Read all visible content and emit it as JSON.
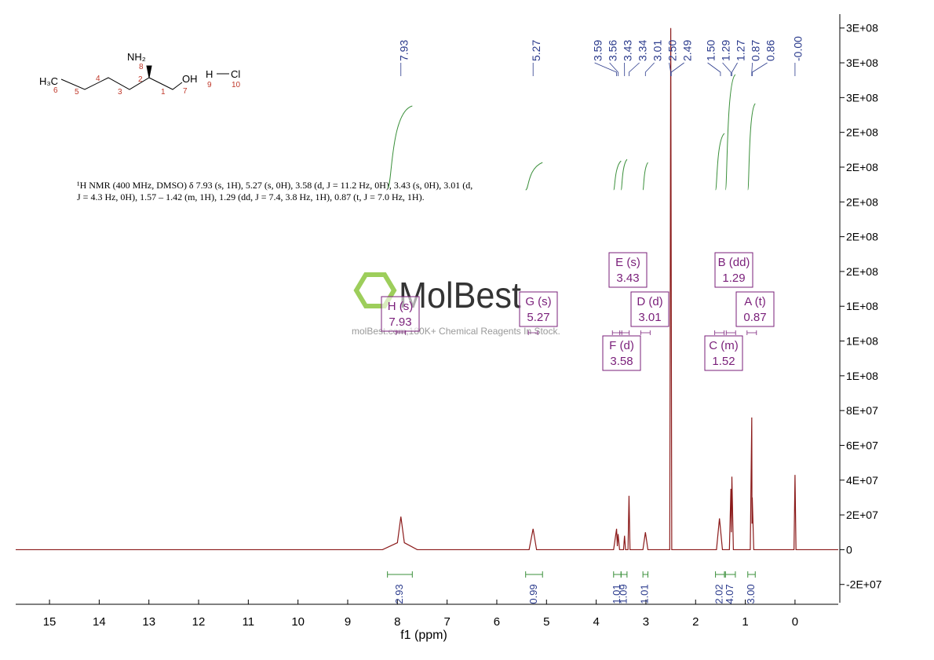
{
  "chart_data": {
    "type": "line",
    "x_label": "f1 (ppm)",
    "xlim": [
      15.68,
      -0.87
    ],
    "xticks": [
      15,
      14,
      13,
      12,
      11,
      10,
      9,
      8,
      7,
      6,
      5,
      4,
      3,
      2,
      1,
      0
    ],
    "ylim": [
      -30500000,
      308000000
    ],
    "yticks": [
      {
        "value": -20000000,
        "label": "-2E+07"
      },
      0,
      {
        "value": 20000000,
        "label": "2E+07"
      },
      {
        "value": 40000000,
        "label": "4E+07"
      },
      {
        "value": 60000000,
        "label": "6E+07"
      },
      {
        "value": 80000000,
        "label": "8E+07"
      },
      {
        "value": 100000000,
        "label": "1E+08"
      },
      {
        "value": 120000000,
        "label": "1E+08"
      },
      {
        "value": 140000000,
        "label": "1E+08"
      },
      {
        "value": 160000000,
        "label": "2E+08"
      },
      {
        "value": 180000000,
        "label": "2E+08"
      },
      {
        "value": 200000000,
        "label": "2E+08"
      },
      {
        "value": 220000000,
        "label": "2E+08"
      },
      {
        "value": 240000000,
        "label": "2E+08"
      },
      {
        "value": 260000000,
        "label": "3E+08"
      },
      {
        "value": 280000000,
        "label": "3E+08"
      },
      {
        "value": 300000000,
        "label": "3E+08"
      }
    ],
    "series": [
      {
        "color": "#8b1a1a",
        "x": [
          15.68,
          8.3,
          8.0,
          7.93,
          7.86,
          7.6,
          5.35,
          5.27,
          5.2,
          3.65,
          3.59,
          3.575,
          3.56,
          3.53,
          3.45,
          3.43,
          3.41,
          3.36,
          3.34,
          3.32,
          3.06,
          3.01,
          2.96,
          2.52,
          2.5,
          2.48,
          1.58,
          1.52,
          1.46,
          1.32,
          1.29,
          1.28,
          1.27,
          1.24,
          0.9,
          0.87,
          0.865,
          0.86,
          0.83,
          0.02,
          0.0,
          -0.02,
          -0.87
        ],
        "values": [
          0,
          0,
          4000000,
          19000000,
          4000000,
          0,
          0,
          12000000,
          0,
          0,
          12000000,
          2000000,
          9000000,
          0,
          0,
          8000000,
          0,
          0,
          31000000,
          0,
          0,
          10000000,
          0,
          0,
          300000000,
          0,
          0,
          18000000,
          0,
          0,
          35000000,
          10000000,
          42000000,
          0,
          0,
          76000000,
          15000000,
          30000000,
          0,
          0,
          43000000,
          0,
          0
        ]
      }
    ],
    "peak_labels": [
      {
        "x": 7.93,
        "label": "7.93"
      },
      {
        "x": 5.27,
        "label": "5.27"
      },
      {
        "x": 3.59,
        "label": "3.59"
      },
      {
        "x": 3.56,
        "label": "3.56"
      },
      {
        "x": 3.43,
        "label": "3.43"
      },
      {
        "x": 3.34,
        "label": "3.34"
      },
      {
        "x": 3.01,
        "label": "3.01"
      },
      {
        "x": 2.5,
        "label": "2.50"
      },
      {
        "x": 2.49,
        "label": "2.49"
      },
      {
        "x": 1.5,
        "label": "1.50"
      },
      {
        "x": 1.29,
        "label": "1.29"
      },
      {
        "x": 1.27,
        "label": "1.27"
      },
      {
        "x": 0.87,
        "label": "0.87"
      },
      {
        "x": 0.86,
        "label": "0.86"
      },
      {
        "x": 0.0,
        "label": "-0.00"
      }
    ],
    "integrals": {
      "ranges": [
        [
          8.2,
          7.7
        ],
        [
          5.42,
          5.08
        ],
        [
          3.65,
          3.5
        ],
        [
          3.5,
          3.38
        ],
        [
          3.06,
          2.96
        ],
        [
          1.6,
          1.42
        ],
        [
          1.4,
          1.2
        ],
        [
          0.95,
          0.8
        ]
      ],
      "values": [
        2.93,
        0.99,
        1.01,
        1.09,
        1.01,
        2.02,
        4.07,
        3.0
      ],
      "value_labels": [
        "2.93",
        "0.99",
        "1.01",
        "1.09",
        "1.01",
        "2.02",
        "4.07",
        "3.00"
      ]
    },
    "multiplets": [
      {
        "name": "H (s)",
        "shift": 7.93
      },
      {
        "name": "G (s)",
        "shift": 5.27
      },
      {
        "name": "E (s)",
        "shift": 3.43
      },
      {
        "name": "D (d)",
        "shift": 3.01
      },
      {
        "name": "F (d)",
        "shift": 3.58
      },
      {
        "name": "B (dd)",
        "shift": 1.29
      },
      {
        "name": "A (t)",
        "shift": 0.87
      },
      {
        "name": "C (m)",
        "shift": 1.52
      }
    ],
    "description": [
      "¹H NMR (400 MHz, DMSO) δ 7.93 (s, 1H), 5.27 (s, 0H), 3.58 (d, J = 11.2 Hz, 0H), 3.43 (s, 0H), 3.01 (d,",
      "J = 4.3 Hz, 0H), 1.57 – 1.42 (m, 1H), 1.29 (dd, J = 7.4, 3.8 Hz, 1H), 0.87 (t, J = 7.0 Hz, 1H)."
    ],
    "molecule": {
      "groups": [
        "H₃C",
        "NH₂",
        "OH",
        "H",
        "Cl"
      ],
      "numbers": [
        "6",
        "5",
        "4",
        "3",
        "2",
        "8",
        "1",
        "7",
        "9",
        "10"
      ]
    },
    "watermark": {
      "brand": "MolBest",
      "tagline": "molBest.com,180K+ Chemical Reagents In Stock."
    }
  }
}
